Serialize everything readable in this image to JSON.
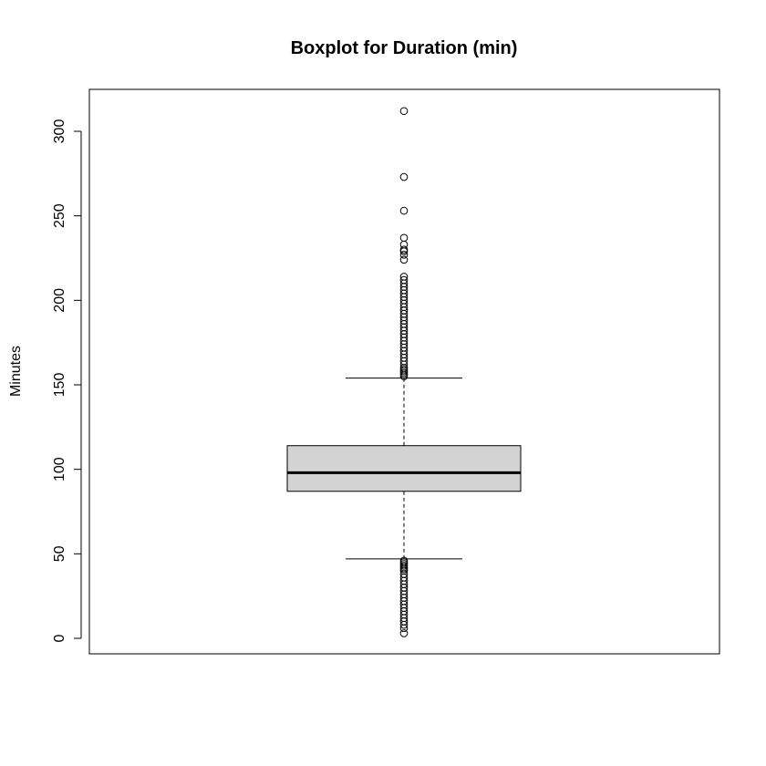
{
  "chart_data": {
    "type": "boxplot",
    "title": "Boxplot for Duration (min)",
    "xlabel": "",
    "ylabel": "Minutes",
    "ylim": [
      -8,
      325
    ],
    "y_ticks": [
      0,
      50,
      100,
      150,
      200,
      250,
      300
    ],
    "grid": false,
    "legend": "none",
    "box": {
      "fill_color": "#d3d3d3",
      "line_color": "#000000",
      "whisker_low": 47,
      "q1": 87,
      "median": 98,
      "q3": 114,
      "whisker_high": 154
    },
    "outliers": [
      3,
      6,
      8,
      10,
      12,
      14,
      16,
      18,
      20,
      22,
      24,
      26,
      28,
      30,
      32,
      34,
      36,
      38,
      40,
      41,
      42,
      43,
      44,
      45,
      46,
      155,
      156,
      157,
      158,
      159,
      160,
      162,
      164,
      166,
      168,
      170,
      172,
      174,
      176,
      178,
      180,
      182,
      184,
      186,
      188,
      190,
      192,
      194,
      196,
      198,
      200,
      202,
      204,
      206,
      208,
      210,
      212,
      214,
      224,
      227,
      229,
      230,
      233,
      237,
      253,
      273,
      312
    ]
  }
}
